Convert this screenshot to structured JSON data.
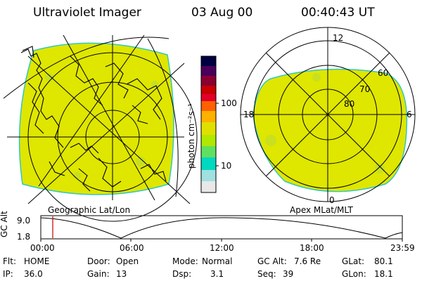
{
  "header": {
    "title": "Ultraviolet Imager",
    "date": "03 Aug 00",
    "time": "00:40:43 UT"
  },
  "colorbar": {
    "unit_label": "photon cm⁻²s⁻¹",
    "ticks": [
      "100",
      "10"
    ],
    "colors": [
      "#000040",
      "#4a005a",
      "#8a0030",
      "#c80000",
      "#e00028",
      "#ff6000",
      "#ffb000",
      "#e0e000",
      "#b0e800",
      "#60e060",
      "#00d8c0",
      "#a0e0e0",
      "#e8e8e8"
    ],
    "scale": "log"
  },
  "left_panel": {
    "caption": "Geographic Lat/Lon",
    "fill_color": "#dfe600"
  },
  "right_panel": {
    "caption": "Apex MLat/MLT",
    "fill_color": "#dfe600",
    "lat_labels": [
      "60",
      "70",
      "80"
    ],
    "mlt_labels": [
      "12",
      "18",
      "6",
      "0"
    ]
  },
  "timeline": {
    "ylabel": "GC Alt",
    "y_ticks": [
      "9.0",
      "1.8"
    ],
    "x_ticks": [
      "00:00",
      "06:00",
      "12:00",
      "18:00",
      "23:59"
    ],
    "marker_color": "#c00000"
  },
  "status": {
    "flt_label": "Flt:",
    "flt_value": "HOME",
    "ip_label": "IP:",
    "ip_value": "36.0",
    "door_label": "Door:",
    "door_value": "Open",
    "gain_label": "Gain:",
    "gain_value": "13",
    "mode_label": "Mode:",
    "mode_value": "Normal",
    "dsp_label": "Dsp:",
    "dsp_value": "3.1",
    "gcalt_label": "GC Alt:",
    "gcalt_value": "7.6 Re",
    "seq_label": "Seq:",
    "seq_value": "39",
    "glat_label": "GLat:",
    "glat_value": "80.1",
    "glon_label": "GLon:",
    "glon_value": "18.1"
  }
}
